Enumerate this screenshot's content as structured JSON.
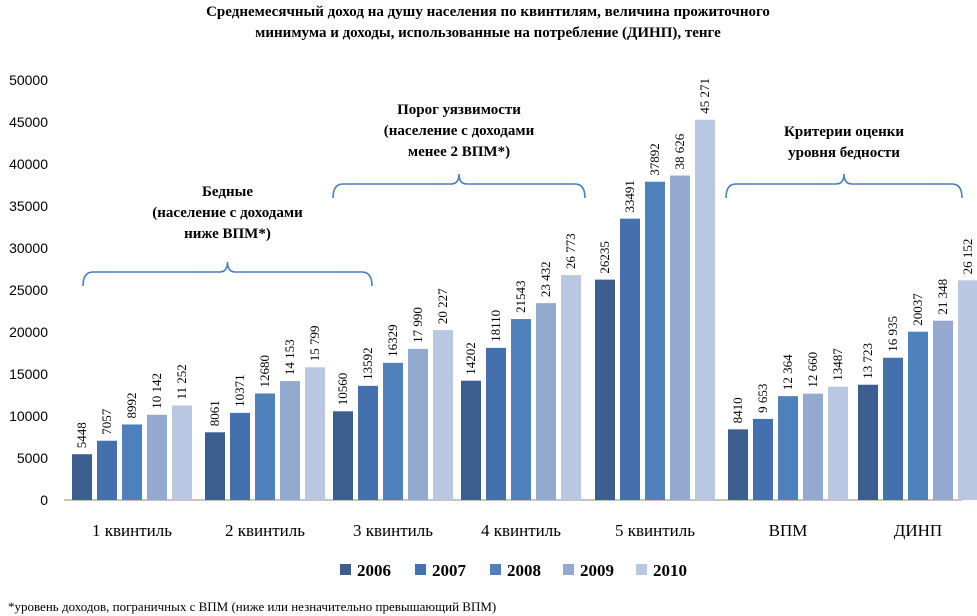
{
  "chart_data": {
    "type": "bar",
    "title": [
      "Среднемесячный доход на душу населения по квинтилям, величина прожиточного",
      "минимума и доходы, использованные на потребление (ДИНП), тенге"
    ],
    "categories": [
      "1 квинтиль",
      "2 квинтиль",
      "3 квинтиль",
      "4 квинтиль",
      "5 квинтиль",
      "ВПМ",
      "ДИНП"
    ],
    "series": [
      {
        "name": "2006",
        "color": "#3b5e8f",
        "values": [
          5448,
          8061,
          10560,
          14202,
          26235,
          8410,
          13723
        ],
        "labels": [
          "5448",
          "8061",
          "10560",
          "14202",
          "26235",
          "8410",
          "13 723"
        ]
      },
      {
        "name": "2007",
        "color": "#4470ae",
        "values": [
          7057,
          10371,
          13592,
          18110,
          33491,
          9653,
          16935
        ],
        "labels": [
          "7057",
          "10371",
          "13592",
          "18110",
          "33491",
          "9 653",
          "16 935"
        ]
      },
      {
        "name": "2008",
        "color": "#4f81bd",
        "values": [
          8992,
          12680,
          16329,
          21543,
          37892,
          12364,
          20037
        ],
        "labels": [
          "8992",
          "12680",
          "16329",
          "21543",
          "37892",
          "12 364",
          "20037"
        ]
      },
      {
        "name": "2009",
        "color": "#93a9cf",
        "values": [
          10142,
          14153,
          17990,
          23432,
          38626,
          12660,
          21348
        ],
        "labels": [
          "10 142",
          "14 153",
          "17 990",
          "23 432",
          "38 626",
          "12 660",
          "21 348"
        ]
      },
      {
        "name": "2010",
        "color": "#b9c7e2",
        "values": [
          11252,
          15799,
          20227,
          26773,
          45271,
          13487,
          26152
        ],
        "labels": [
          "11 252",
          "15 799",
          "20 227",
          "26 773",
          "45 271",
          "13487",
          "26 152"
        ]
      }
    ],
    "ylim": [
      0,
      50000
    ],
    "yticks": [
      "0",
      "5000",
      "10000",
      "15000",
      "20000",
      "25000",
      "30000",
      "35000",
      "40000",
      "45000",
      "50000"
    ],
    "legend_position": "bottom",
    "annotations": [
      {
        "lines": [
          "Бедные",
          "(население с доходами",
          "ниже ВПМ*)"
        ],
        "span": [
          0,
          1
        ]
      },
      {
        "lines": [
          "Порог уязвимости",
          "(население с доходами",
          "менее 2 ВПМ*)"
        ],
        "span": [
          2,
          3
        ]
      },
      {
        "lines": [
          "Критерии оценки",
          "уровня бедности"
        ],
        "span": [
          5,
          6
        ]
      }
    ],
    "footnote": "*уровень доходов, пограничных с ВПМ (ниже или незначительно превышающий ВПМ)"
  }
}
